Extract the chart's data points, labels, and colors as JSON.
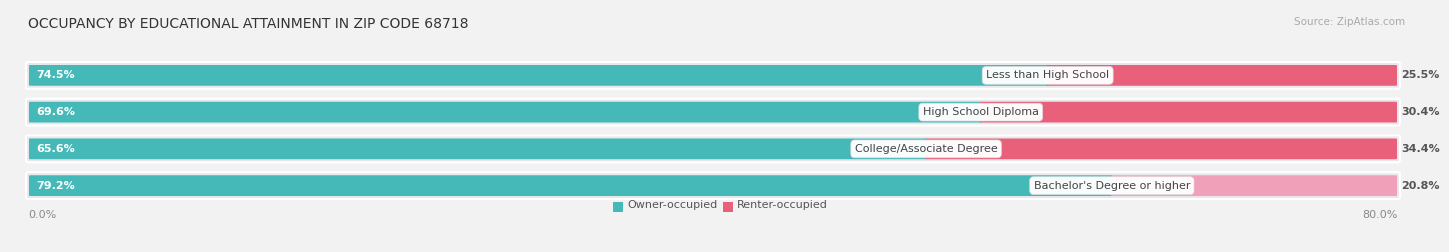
{
  "title": "OCCUPANCY BY EDUCATIONAL ATTAINMENT IN ZIP CODE 68718",
  "source": "Source: ZipAtlas.com",
  "categories": [
    "Less than High School",
    "High School Diploma",
    "College/Associate Degree",
    "Bachelor's Degree or higher"
  ],
  "owner_values": [
    74.5,
    69.6,
    65.6,
    79.2
  ],
  "renter_values": [
    25.5,
    30.4,
    34.4,
    20.8
  ],
  "owner_color": "#45b8b8",
  "renter_color_dark": "#e8607a",
  "renter_color_light": "#f0a0b8",
  "owner_label": "Owner-occupied",
  "renter_label": "Renter-occupied",
  "row_bg_color": "#e8e8ec",
  "bar_bg_color": "#f5f5f7",
  "background_color": "#f2f2f2",
  "title_fontsize": 10,
  "label_fontsize": 8,
  "cat_fontsize": 8,
  "tick_fontsize": 8,
  "source_fontsize": 7.5,
  "x_left_label": "0.0%",
  "x_right_label": "80.0%"
}
